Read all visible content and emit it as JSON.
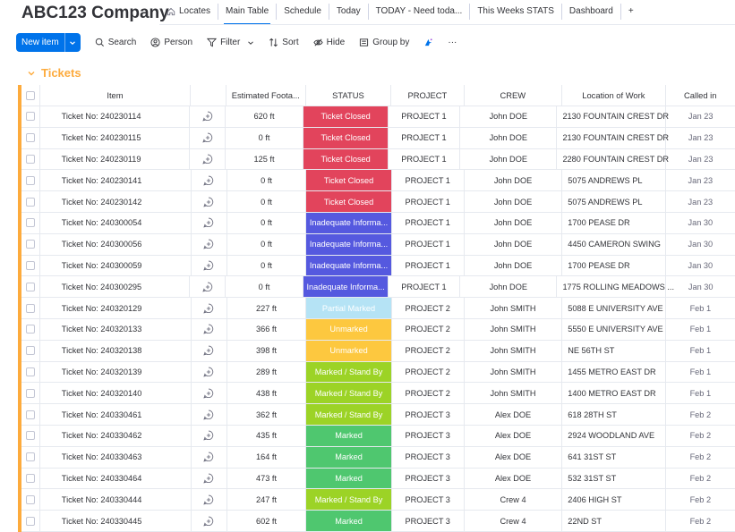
{
  "header": {
    "company": "ABC123 Company",
    "tabs": [
      {
        "label": "Locates",
        "icon": "home-icon"
      },
      {
        "label": "Main Table",
        "active": true
      },
      {
        "label": "Schedule"
      },
      {
        "label": "Today"
      },
      {
        "label": "TODAY - Need toda..."
      },
      {
        "label": "This Weeks STATS"
      },
      {
        "label": "Dashboard"
      },
      {
        "label": "+"
      }
    ]
  },
  "toolbar": {
    "new_item": "New item",
    "search": "Search",
    "person": "Person",
    "filter": "Filter",
    "sort": "Sort",
    "hide": "Hide",
    "group_by": "Group by",
    "more": "···"
  },
  "group": {
    "title": "Tickets",
    "color": "#fdab3d"
  },
  "columns": {
    "item": "Item",
    "estimated": "Estimated Foota...",
    "status": "STATUS",
    "project": "PROJECT",
    "crew": "CREW",
    "location": "Location of Work",
    "called": "Called in"
  },
  "status_colors": {
    "Ticket Closed": "#e2445c",
    "Inadequate Informa...": "#5559df",
    "Partial Marked": "#b5e3f5",
    "Unmarked": "#fdc83f",
    "Marked / Stand By": "#9cd326",
    "Marked": "#4fc76f"
  },
  "rows": [
    {
      "item": "Ticket No: 240230114",
      "est": "620 ft",
      "status": "Ticket Closed",
      "project": "PROJECT 1",
      "crew": "John DOE",
      "location": "2130 FOUNTAIN CREST DR",
      "called": "Jan 23"
    },
    {
      "item": "Ticket No: 240230115",
      "est": "0 ft",
      "status": "Ticket Closed",
      "project": "PROJECT 1",
      "crew": "John DOE",
      "location": "2130 FOUNTAIN CREST DR",
      "called": "Jan 23"
    },
    {
      "item": "Ticket No: 240230119",
      "est": "125 ft",
      "status": "Ticket Closed",
      "project": "PROJECT 1",
      "crew": "John DOE",
      "location": "2280 FOUNTAIN CREST DR",
      "called": "Jan 23"
    },
    {
      "item": "Ticket No: 240230141",
      "est": "0 ft",
      "status": "Ticket Closed",
      "project": "PROJECT 1",
      "crew": "John DOE",
      "location": "5075 ANDREWS PL",
      "called": "Jan 23"
    },
    {
      "item": "Ticket No: 240230142",
      "est": "0 ft",
      "status": "Ticket Closed",
      "project": "PROJECT 1",
      "crew": "John DOE",
      "location": "5075 ANDREWS PL",
      "called": "Jan 23"
    },
    {
      "item": "Ticket No: 240300054",
      "est": "0 ft",
      "status": "Inadequate Informa...",
      "project": "PROJECT 1",
      "crew": "John DOE",
      "location": "1700 PEASE DR",
      "called": "Jan 30"
    },
    {
      "item": "Ticket No: 240300056",
      "est": "0 ft",
      "status": "Inadequate Informa...",
      "project": "PROJECT 1",
      "crew": "John DOE",
      "location": "4450 CAMERON SWING",
      "called": "Jan 30"
    },
    {
      "item": "Ticket No: 240300059",
      "est": "0 ft",
      "status": "Inadequate Informa...",
      "project": "PROJECT 1",
      "crew": "John DOE",
      "location": "1700 PEASE DR",
      "called": "Jan 30"
    },
    {
      "item": "Ticket No: 240300295",
      "est": "0 ft",
      "status": "Inadequate Informa...",
      "project": "PROJECT 1",
      "crew": "John DOE",
      "location": "1775 ROLLING MEADOWS ...",
      "called": "Jan 30"
    },
    {
      "item": "Ticket No: 240320129",
      "est": "227 ft",
      "status": "Partial Marked",
      "project": "PROJECT 2",
      "crew": "John SMITH",
      "location": "5088 E UNIVERSITY AVE",
      "called": "Feb 1"
    },
    {
      "item": "Ticket No: 240320133",
      "est": "366 ft",
      "status": "Unmarked",
      "project": "PROJECT 2",
      "crew": "John SMITH",
      "location": "5550 E UNIVERSITY AVE",
      "called": "Feb 1"
    },
    {
      "item": "Ticket No: 240320138",
      "est": "398 ft",
      "status": "Unmarked",
      "project": "PROJECT 2",
      "crew": "John SMITH",
      "location": "NE 56TH ST",
      "called": "Feb 1"
    },
    {
      "item": "Ticket No: 240320139",
      "est": "289 ft",
      "status": "Marked / Stand By",
      "project": "PROJECT 2",
      "crew": "John SMITH",
      "location": "1455 METRO EAST DR",
      "called": "Feb 1"
    },
    {
      "item": "Ticket No: 240320140",
      "est": "438 ft",
      "status": "Marked / Stand By",
      "project": "PROJECT 2",
      "crew": "John SMITH",
      "location": "1400 METRO EAST DR",
      "called": "Feb 1"
    },
    {
      "item": "Ticket No: 240330461",
      "est": "362 ft",
      "status": "Marked / Stand By",
      "project": "PROJECT 3",
      "crew": "Alex DOE",
      "location": "618 28TH ST",
      "called": "Feb 2"
    },
    {
      "item": "Ticket No: 240330462",
      "est": "435 ft",
      "status": "Marked",
      "project": "PROJECT 3",
      "crew": "Alex DOE",
      "location": "2924 WOODLAND AVE",
      "called": "Feb 2"
    },
    {
      "item": "Ticket No: 240330463",
      "est": "164 ft",
      "status": "Marked",
      "project": "PROJECT 3",
      "crew": "Alex DOE",
      "location": "641 31ST ST",
      "called": "Feb 2"
    },
    {
      "item": "Ticket No: 240330464",
      "est": "473 ft",
      "status": "Marked",
      "project": "PROJECT 3",
      "crew": "Alex DOE",
      "location": "532 31ST ST",
      "called": "Feb 2"
    },
    {
      "item": "Ticket No: 240330444",
      "est": "247 ft",
      "status": "Marked / Stand By",
      "project": "PROJECT 3",
      "crew": "Crew 4",
      "location": "2406 HIGH ST",
      "called": "Feb 2"
    },
    {
      "item": "Ticket No: 240330445",
      "est": "602 ft",
      "status": "Marked",
      "project": "PROJECT 3",
      "crew": "Crew 4",
      "location": "22ND ST",
      "called": "Feb 2"
    }
  ]
}
